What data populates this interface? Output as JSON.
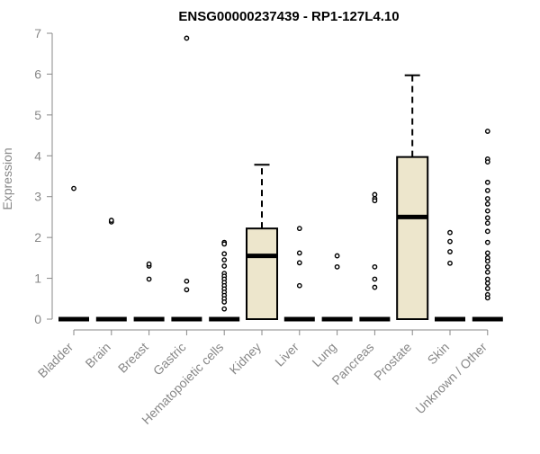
{
  "chart_data": {
    "type": "box",
    "title": "ENSG00000237439 - RP1-127L4.10",
    "xlabel": "",
    "ylabel": "Expression",
    "ylim": [
      0,
      7
    ],
    "yticks": [
      0,
      1,
      2,
      3,
      4,
      5,
      6,
      7
    ],
    "categories": [
      "Bladder",
      "Brain",
      "Breast",
      "Gastric",
      "Hematopoietic cells",
      "Kidney",
      "Liver",
      "Lung",
      "Pancreas",
      "Prostate",
      "Skin",
      "Unknown / Other"
    ],
    "box_fill": "#ede6cc",
    "stroke": "#000000",
    "axis_color": "#888888",
    "boxes": [
      {
        "q1": 0,
        "median": 0,
        "q3": 0,
        "whisker_low": 0,
        "whisker_high": 0,
        "outliers": [
          3.2
        ]
      },
      {
        "q1": 0,
        "median": 0,
        "q3": 0,
        "whisker_low": 0,
        "whisker_high": 0,
        "outliers": [
          2.38,
          2.42
        ]
      },
      {
        "q1": 0,
        "median": 0,
        "q3": 0,
        "whisker_low": 0,
        "whisker_high": 0,
        "outliers": [
          1.3,
          1.35,
          0.98
        ]
      },
      {
        "q1": 0,
        "median": 0,
        "q3": 0,
        "whisker_low": 0,
        "whisker_high": 0,
        "outliers": [
          6.88,
          0.93,
          0.72
        ]
      },
      {
        "q1": 0,
        "median": 0,
        "q3": 0,
        "whisker_low": 0,
        "whisker_high": 0,
        "outliers": [
          1.88,
          1.84,
          1.6,
          1.45,
          1.3,
          1.12,
          1.05,
          0.98,
          0.9,
          0.82,
          0.74,
          0.66,
          0.58,
          0.5,
          0.42,
          0.25
        ]
      },
      {
        "q1": 0,
        "median": 1.55,
        "q3": 2.22,
        "whisker_low": 0,
        "whisker_high": 3.78,
        "outliers": []
      },
      {
        "q1": 0,
        "median": 0,
        "q3": 0,
        "whisker_low": 0,
        "whisker_high": 0,
        "outliers": [
          2.22,
          1.62,
          1.38,
          0.82
        ]
      },
      {
        "q1": 0,
        "median": 0,
        "q3": 0,
        "whisker_low": 0,
        "whisker_high": 0,
        "outliers": [
          1.55,
          1.28
        ]
      },
      {
        "q1": 0,
        "median": 0,
        "q3": 0,
        "whisker_low": 0,
        "whisker_high": 0,
        "outliers": [
          3.05,
          2.95,
          2.9,
          1.28,
          0.98,
          0.78
        ]
      },
      {
        "q1": 0,
        "median": 2.5,
        "q3": 3.97,
        "whisker_low": 0,
        "whisker_high": 5.97,
        "outliers": []
      },
      {
        "q1": 0,
        "median": 0,
        "q3": 0,
        "whisker_low": 0,
        "whisker_high": 0,
        "outliers": [
          2.12,
          1.9,
          1.65,
          1.37
        ]
      },
      {
        "q1": 0,
        "median": 0,
        "q3": 0,
        "whisker_low": 0,
        "whisker_high": 0,
        "outliers": [
          4.6,
          3.92,
          3.85,
          3.35,
          3.15,
          2.95,
          2.82,
          2.65,
          2.48,
          2.35,
          2.15,
          1.88,
          1.62,
          1.5,
          1.42,
          1.28,
          1.15,
          0.98,
          0.88,
          0.75,
          0.6,
          0.52
        ]
      }
    ]
  }
}
